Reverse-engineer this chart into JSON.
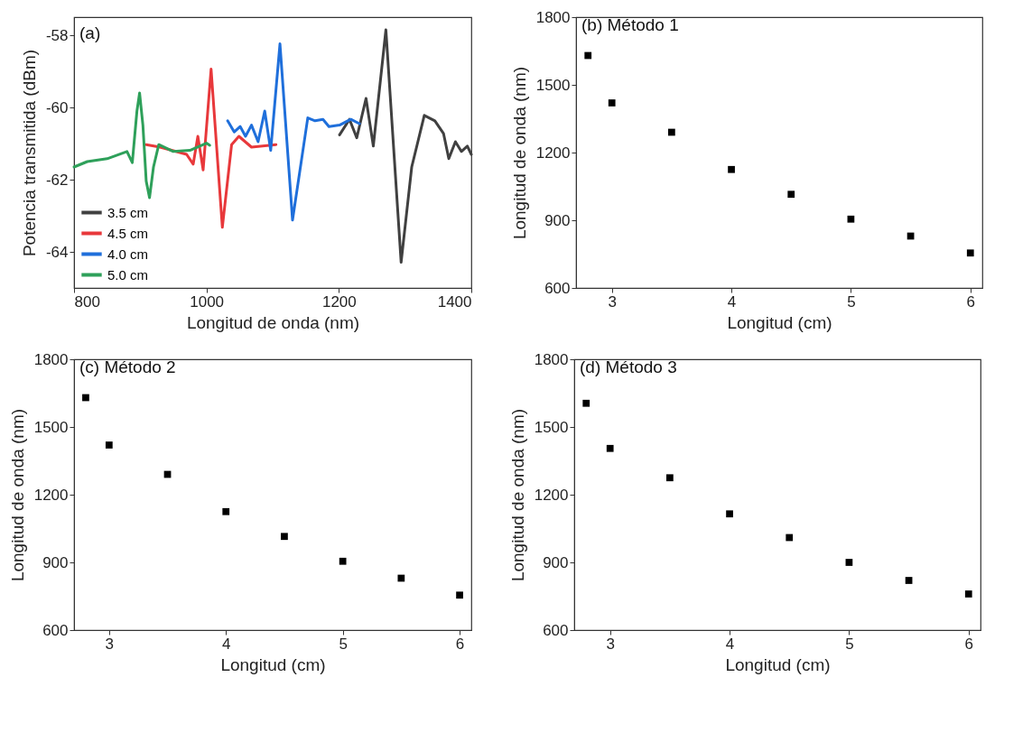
{
  "chart_data": [
    {
      "type": "line",
      "title": "(a)",
      "xlabel": "Longitud de onda (nm)",
      "ylabel": "Potencia transmitida (dBm)",
      "xlim": [
        800,
        1400
      ],
      "xticks": [
        800,
        1000,
        1200,
        1400
      ],
      "ylim": [
        -65,
        -57.5
      ],
      "yticks": [
        -64,
        -62,
        -60,
        -58
      ],
      "legend": "bottom left",
      "line_style": "solid",
      "series": [
        {
          "name": "3.5 cm",
          "color": "#404040",
          "x": [
            1201,
            1216,
            1227,
            1241,
            1252,
            1271,
            1294,
            1310,
            1329,
            1345,
            1358,
            1366,
            1376,
            1385,
            1394,
            1400
          ],
          "values": [
            -60.76,
            -60.33,
            -60.84,
            -59.75,
            -61.07,
            -57.85,
            -64.29,
            -61.65,
            -60.22,
            -60.37,
            -60.72,
            -61.42,
            -60.95,
            -61.22,
            -61.07,
            -61.3
          ]
        },
        {
          "name": "4.5 cm",
          "color": "#e8383b",
          "x": [
            909,
            930,
            950,
            970,
            980,
            987,
            995,
            1007,
            1024,
            1038,
            1049,
            1068,
            1105
          ],
          "values": [
            -61.03,
            -61.1,
            -61.2,
            -61.3,
            -61.57,
            -60.8,
            -61.73,
            -58.94,
            -63.32,
            -61.03,
            -60.8,
            -61.1,
            -61.03
          ]
        },
        {
          "name": "4.0 cm",
          "color": "#1f6fdb",
          "x": [
            1032,
            1042,
            1051,
            1059,
            1068,
            1078,
            1088,
            1097,
            1111,
            1130,
            1153,
            1164,
            1176,
            1185,
            1201,
            1218,
            1231
          ],
          "values": [
            -60.37,
            -60.68,
            -60.53,
            -60.8,
            -60.49,
            -60.95,
            -60.1,
            -61.19,
            -58.24,
            -63.12,
            -60.29,
            -60.37,
            -60.33,
            -60.53,
            -60.49,
            -60.33,
            -60.45
          ]
        },
        {
          "name": "5.0 cm",
          "color": "#2ea05a",
          "x": [
            800,
            820,
            850,
            880,
            888,
            895,
            899,
            904,
            909,
            914,
            920,
            928,
            950,
            975,
            1000,
            1005
          ],
          "values": [
            -61.65,
            -61.5,
            -61.42,
            -61.22,
            -61.53,
            -60.1,
            -59.6,
            -60.49,
            -62.04,
            -62.5,
            -61.65,
            -61.03,
            -61.22,
            -61.19,
            -60.99,
            -61.05
          ]
        }
      ]
    },
    {
      "type": "scatter",
      "title": "(b) Método 1",
      "xlabel": "Longitud (cm)",
      "ylabel": "Longitud de onda (nm)",
      "xlim": [
        2.7,
        6.1
      ],
      "xticks": [
        3,
        4,
        5,
        6
      ],
      "ylim": [
        600,
        1800
      ],
      "yticks": [
        600,
        900,
        1200,
        1500,
        1800
      ],
      "marker": "square",
      "color": "#000000",
      "x": [
        2.8,
        3,
        3.5,
        4,
        4.5,
        5,
        5.5,
        6
      ],
      "values": [
        1630,
        1420,
        1290,
        1125,
        1015,
        905,
        830,
        755
      ]
    },
    {
      "type": "scatter",
      "title": "(c) Método 2",
      "xlabel": "Longitud (cm)",
      "ylabel": "Longitud de onda (nm)",
      "xlim": [
        2.7,
        6.1
      ],
      "xticks": [
        3,
        4,
        5,
        6
      ],
      "ylim": [
        600,
        1800
      ],
      "yticks": [
        600,
        900,
        1200,
        1500,
        1800
      ],
      "marker": "square",
      "color": "#000000",
      "x": [
        2.8,
        3,
        3.5,
        4,
        4.5,
        5,
        5.5,
        6
      ],
      "values": [
        1630,
        1420,
        1290,
        1125,
        1015,
        905,
        830,
        755
      ]
    },
    {
      "type": "scatter",
      "title": "(d) Método 3",
      "xlabel": "Longitud (cm)",
      "ylabel": "Longitud de onda (nm)",
      "xlim": [
        2.7,
        6.1
      ],
      "xticks": [
        3,
        4,
        5,
        6
      ],
      "ylim": [
        600,
        1800
      ],
      "yticks": [
        600,
        900,
        1200,
        1500,
        1800
      ],
      "marker": "square",
      "color": "#000000",
      "x": [
        2.8,
        3,
        3.5,
        4,
        4.5,
        5,
        5.5,
        6
      ],
      "values": [
        1605,
        1405,
        1275,
        1115,
        1010,
        900,
        820,
        760
      ]
    }
  ]
}
